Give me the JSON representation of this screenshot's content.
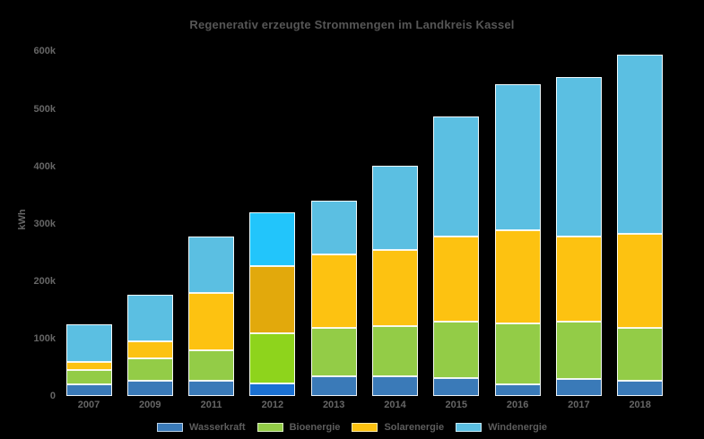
{
  "chart_data": {
    "type": "bar",
    "stacked": true,
    "title": "Regenerativ erzeugte Strommengen im Landkreis Kassel",
    "xlabel": "",
    "ylabel": "kWh",
    "unit": "thousand kWh",
    "categories": [
      "2007",
      "2009",
      "2011",
      "2012",
      "2013",
      "2014",
      "2015",
      "2016",
      "2017",
      "2018"
    ],
    "series": [
      {
        "name": "Wasserkraft",
        "color": "#3a7ab8",
        "highlight_color": "#1a70d2",
        "values": [
          20,
          26,
          26,
          22,
          35,
          35,
          31,
          21,
          30,
          26
        ]
      },
      {
        "name": "Bioenergie",
        "color": "#93cc47",
        "highlight_color": "#8ed41c",
        "values": [
          26,
          39,
          53,
          87,
          84,
          87,
          99,
          106,
          100,
          92
        ]
      },
      {
        "name": "Solarenergie",
        "color": "#fdc211",
        "highlight_color": "#e2a90c",
        "values": [
          14,
          30,
          100,
          117,
          127,
          133,
          148,
          161,
          148,
          165
        ]
      },
      {
        "name": "Windenergie",
        "color": "#5bbfe2",
        "highlight_color": "#22c5fb",
        "values": [
          65,
          82,
          98,
          94,
          94,
          146,
          209,
          255,
          278,
          312
        ]
      }
    ],
    "highlighted_category": "2012",
    "yticks": [
      "0",
      "100k",
      "200k",
      "300k",
      "400k",
      "500k",
      "600k"
    ],
    "ylim": [
      0,
      600
    ],
    "grid": false,
    "legend_position": "bottom"
  },
  "colors": {
    "background": "#000000",
    "title_text": "#565656",
    "tick_text": "#666666",
    "bar_border": "#ffffff"
  }
}
